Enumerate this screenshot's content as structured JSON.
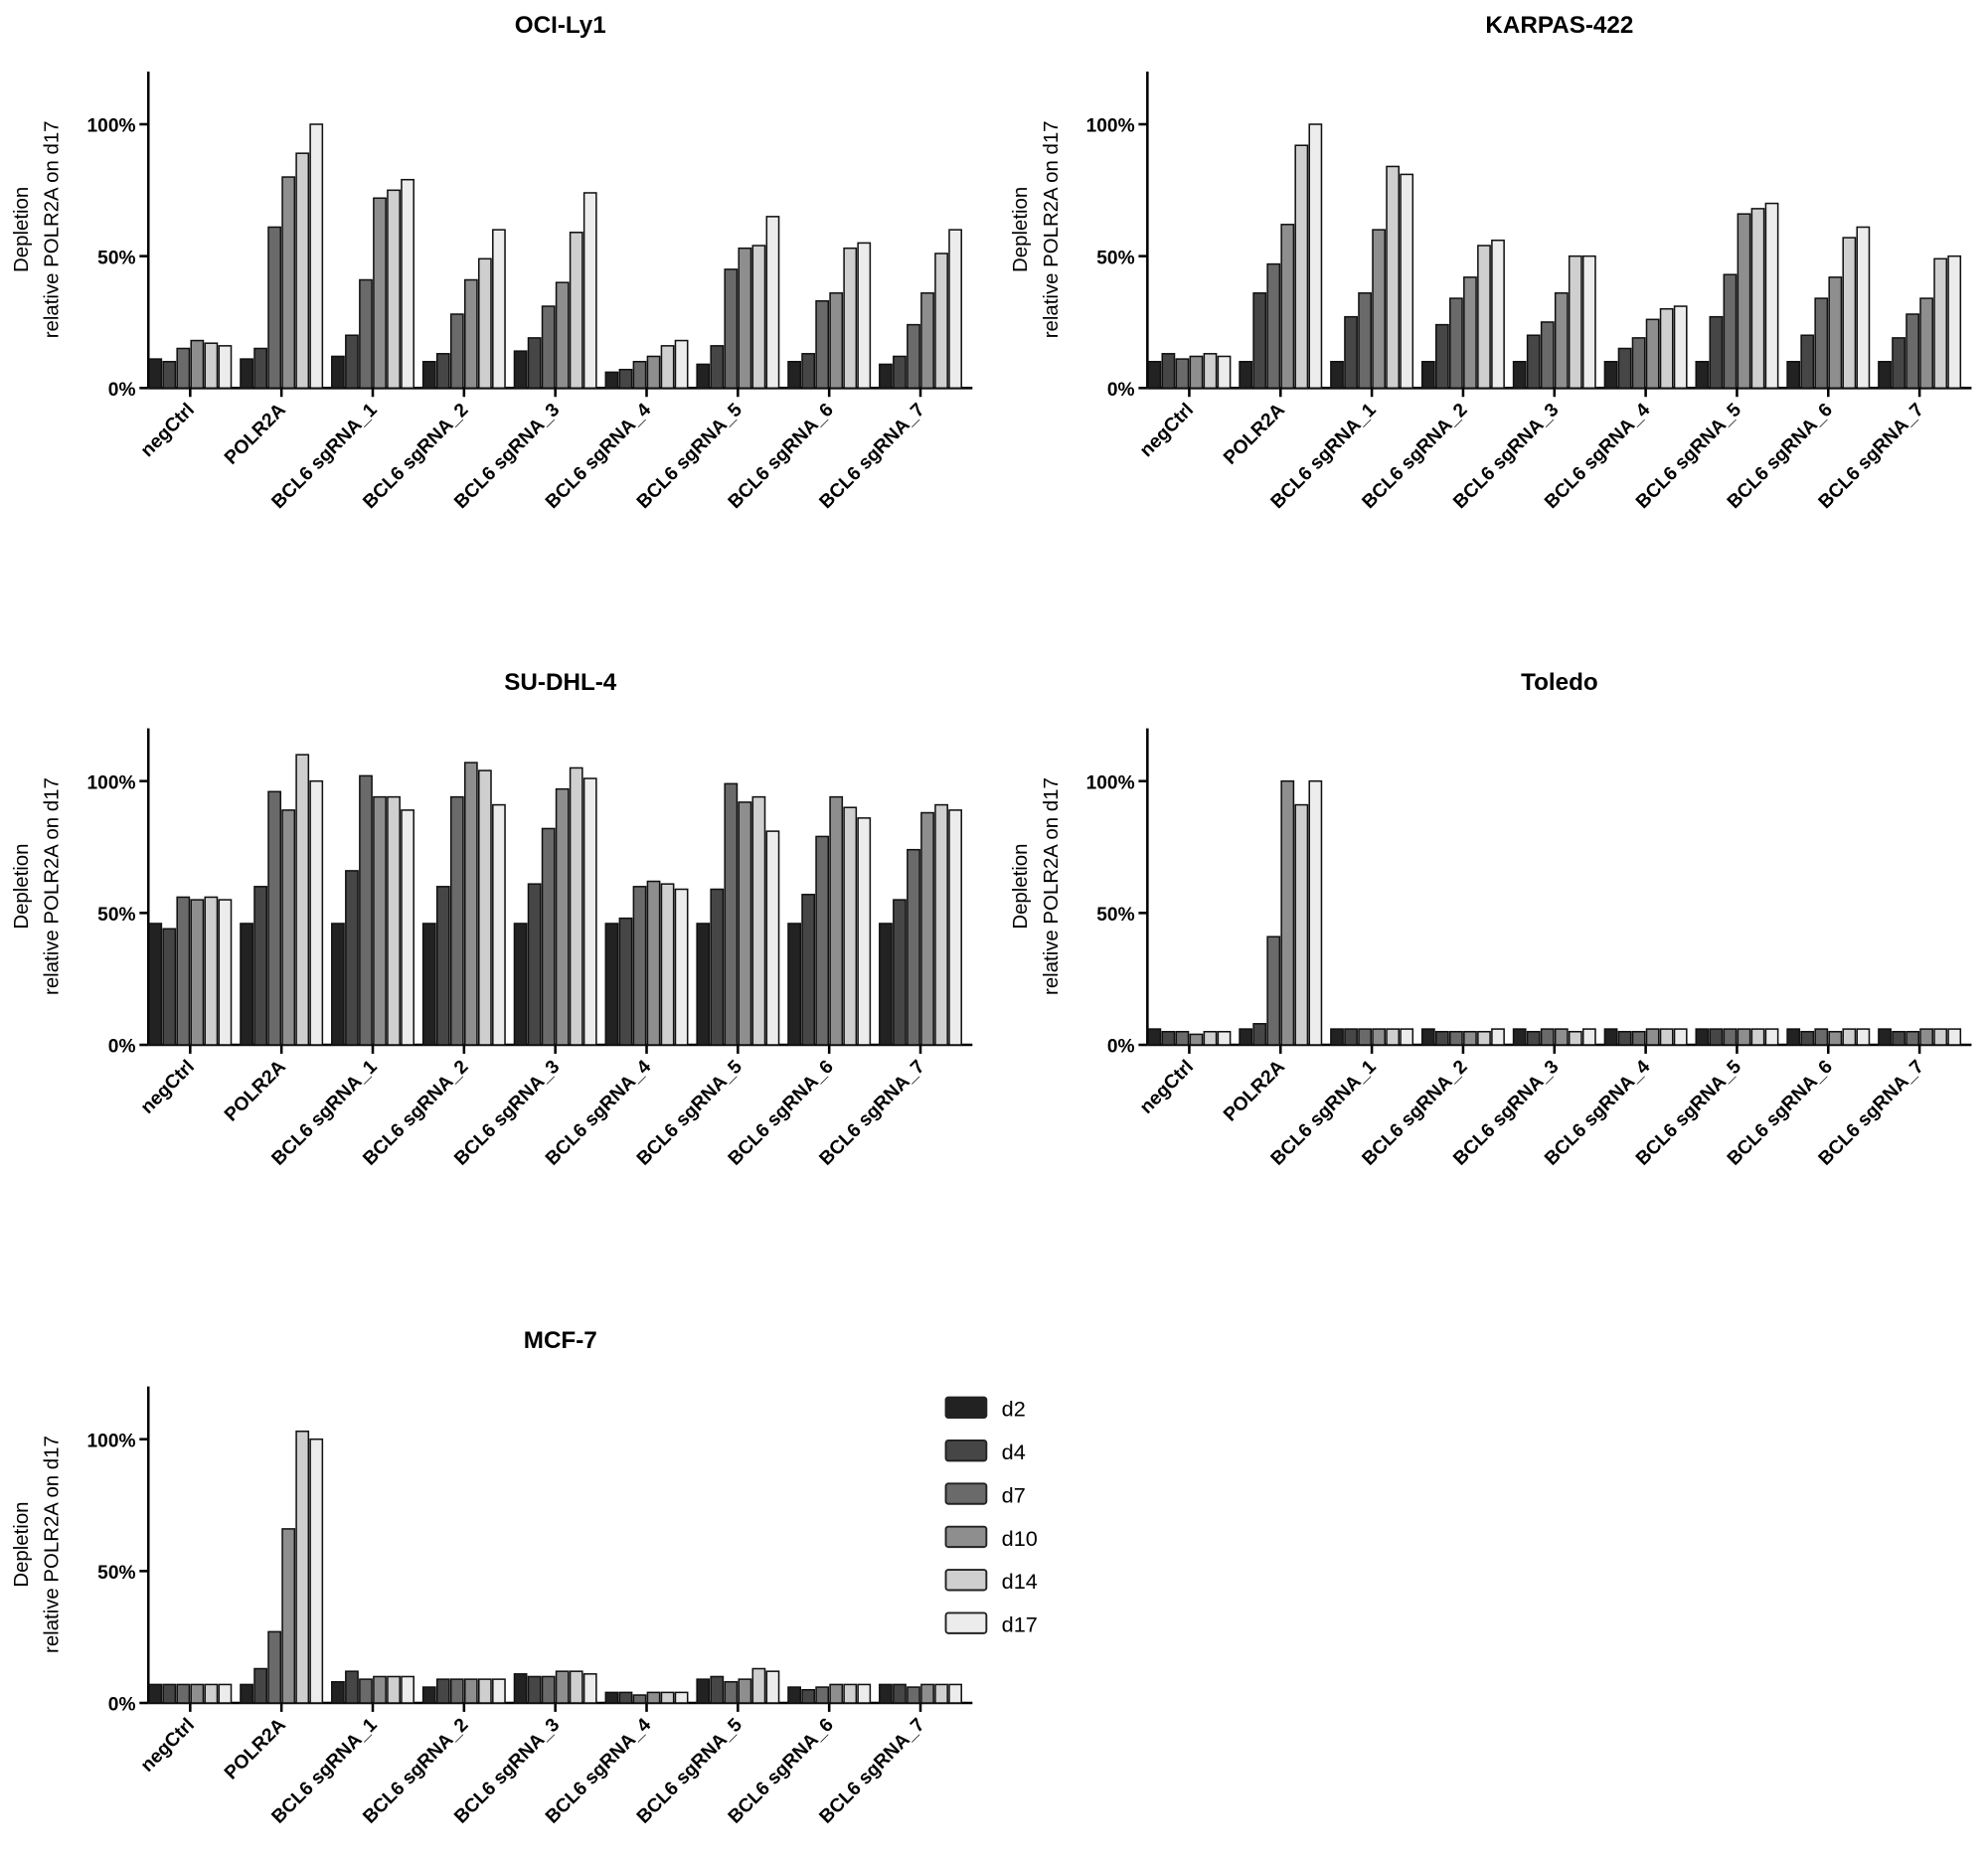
{
  "colors": {
    "d2": "#222222",
    "d4": "#464646",
    "d7": "#6a6a6a",
    "d10": "#8e8e8e",
    "d14": "#cfcfcf",
    "d17": "#ececec"
  },
  "legend": [
    "d2",
    "d4",
    "d7",
    "d10",
    "d14",
    "d17"
  ],
  "chart_data": [
    {
      "type": "bar",
      "title": "OCI-Ly1",
      "ylabel": [
        "Depletion",
        "relative POLR2A on d17"
      ],
      "ylim": [
        0,
        120
      ],
      "yticks": [
        "0%",
        "50%",
        "100%"
      ],
      "categories": [
        "negCtrl",
        "POLR2A",
        "BCL6 sgRNA_1",
        "BCL6 sgRNA_2",
        "BCL6 sgRNA_3",
        "BCL6 sgRNA_4",
        "BCL6 sgRNA_5",
        "BCL6 sgRNA_6",
        "BCL6 sgRNA_7"
      ],
      "series": [
        {
          "name": "d2",
          "values": [
            11,
            11,
            12,
            10,
            14,
            6,
            9,
            10,
            9
          ]
        },
        {
          "name": "d4",
          "values": [
            10,
            15,
            20,
            13,
            19,
            7,
            16,
            13,
            12
          ]
        },
        {
          "name": "d7",
          "values": [
            15,
            61,
            41,
            28,
            31,
            10,
            45,
            33,
            24
          ]
        },
        {
          "name": "d10",
          "values": [
            18,
            80,
            72,
            41,
            40,
            12,
            53,
            36,
            36
          ]
        },
        {
          "name": "d14",
          "values": [
            17,
            89,
            75,
            49,
            59,
            16,
            54,
            53,
            51
          ]
        },
        {
          "name": "d17",
          "values": [
            16,
            100,
            79,
            60,
            74,
            18,
            65,
            55,
            60
          ]
        }
      ]
    },
    {
      "type": "bar",
      "title": "KARPAS-422",
      "ylabel": [
        "Depletion",
        "relative POLR2A on d17"
      ],
      "ylim": [
        0,
        120
      ],
      "yticks": [
        "0%",
        "50%",
        "100%"
      ],
      "categories": [
        "negCtrl",
        "POLR2A",
        "BCL6 sgRNA_1",
        "BCL6 sgRNA_2",
        "BCL6 sgRNA_3",
        "BCL6 sgRNA_4",
        "BCL6 sgRNA_5",
        "BCL6 sgRNA_6",
        "BCL6 sgRNA_7"
      ],
      "series": [
        {
          "name": "d2",
          "values": [
            10,
            10,
            10,
            10,
            10,
            10,
            10,
            10,
            10
          ]
        },
        {
          "name": "d4",
          "values": [
            13,
            36,
            27,
            24,
            20,
            15,
            27,
            20,
            19
          ]
        },
        {
          "name": "d7",
          "values": [
            11,
            47,
            36,
            34,
            25,
            19,
            43,
            34,
            28
          ]
        },
        {
          "name": "d10",
          "values": [
            12,
            62,
            60,
            42,
            36,
            26,
            66,
            42,
            34
          ]
        },
        {
          "name": "d14",
          "values": [
            13,
            92,
            84,
            54,
            50,
            30,
            68,
            57,
            49
          ]
        },
        {
          "name": "d17",
          "values": [
            12,
            100,
            81,
            56,
            50,
            31,
            70,
            61,
            50
          ]
        }
      ]
    },
    {
      "type": "bar",
      "title": "SU-DHL-4",
      "ylabel": [
        "Depletion",
        "relative POLR2A on d17"
      ],
      "ylim": [
        0,
        120
      ],
      "yticks": [
        "0%",
        "50%",
        "100%"
      ],
      "categories": [
        "negCtrl",
        "POLR2A",
        "BCL6 sgRNA_1",
        "BCL6 sgRNA_2",
        "BCL6 sgRNA_3",
        "BCL6 sgRNA_4",
        "BCL6 sgRNA_5",
        "BCL6 sgRNA_6",
        "BCL6 sgRNA_7"
      ],
      "series": [
        {
          "name": "d2",
          "values": [
            46,
            46,
            46,
            46,
            46,
            46,
            46,
            46,
            46
          ]
        },
        {
          "name": "d4",
          "values": [
            44,
            60,
            66,
            60,
            61,
            48,
            59,
            57,
            55
          ]
        },
        {
          "name": "d7",
          "values": [
            56,
            96,
            102,
            94,
            82,
            60,
            99,
            79,
            74
          ]
        },
        {
          "name": "d10",
          "values": [
            55,
            89,
            94,
            107,
            97,
            62,
            92,
            94,
            88
          ]
        },
        {
          "name": "d14",
          "values": [
            56,
            110,
            94,
            104,
            105,
            61,
            94,
            90,
            91
          ]
        },
        {
          "name": "d17",
          "values": [
            55,
            100,
            89,
            91,
            101,
            59,
            81,
            86,
            89
          ]
        }
      ]
    },
    {
      "type": "bar",
      "title": "Toledo",
      "ylabel": [
        "Depletion",
        "relative POLR2A on d17"
      ],
      "ylim": [
        0,
        120
      ],
      "yticks": [
        "0%",
        "50%",
        "100%"
      ],
      "categories": [
        "negCtrl",
        "POLR2A",
        "BCL6 sgRNA_1",
        "BCL6 sgRNA_2",
        "BCL6 sgRNA_3",
        "BCL6 sgRNA_4",
        "BCL6 sgRNA_5",
        "BCL6 sgRNA_6",
        "BCL6 sgRNA_7"
      ],
      "series": [
        {
          "name": "d2",
          "values": [
            6,
            6,
            6,
            6,
            6,
            6,
            6,
            6,
            6
          ]
        },
        {
          "name": "d4",
          "values": [
            5,
            8,
            6,
            5,
            5,
            5,
            6,
            5,
            5
          ]
        },
        {
          "name": "d7",
          "values": [
            5,
            41,
            6,
            5,
            6,
            5,
            6,
            6,
            5
          ]
        },
        {
          "name": "d10",
          "values": [
            4,
            100,
            6,
            5,
            6,
            6,
            6,
            5,
            6
          ]
        },
        {
          "name": "d14",
          "values": [
            5,
            91,
            6,
            5,
            5,
            6,
            6,
            6,
            6
          ]
        },
        {
          "name": "d17",
          "values": [
            5,
            100,
            6,
            6,
            6,
            6,
            6,
            6,
            6
          ]
        }
      ]
    },
    {
      "type": "bar",
      "title": "MCF-7",
      "ylabel": [
        "Depletion",
        "relative POLR2A on d17"
      ],
      "ylim": [
        0,
        120
      ],
      "yticks": [
        "0%",
        "50%",
        "100%"
      ],
      "categories": [
        "negCtrl",
        "POLR2A",
        "BCL6 sgRNA_1",
        "BCL6 sgRNA_2",
        "BCL6 sgRNA_3",
        "BCL6 sgRNA_4",
        "BCL6 sgRNA_5",
        "BCL6 sgRNA_6",
        "BCL6 sgRNA_7"
      ],
      "series": [
        {
          "name": "d2",
          "values": [
            7,
            7,
            8,
            6,
            11,
            4,
            9,
            6,
            7
          ]
        },
        {
          "name": "d4",
          "values": [
            7,
            13,
            12,
            9,
            10,
            4,
            10,
            5,
            7
          ]
        },
        {
          "name": "d7",
          "values": [
            7,
            27,
            9,
            9,
            10,
            3,
            8,
            6,
            6
          ]
        },
        {
          "name": "d10",
          "values": [
            7,
            66,
            10,
            9,
            12,
            4,
            9,
            7,
            7
          ]
        },
        {
          "name": "d14",
          "values": [
            7,
            103,
            10,
            9,
            12,
            4,
            13,
            7,
            7
          ]
        },
        {
          "name": "d17",
          "values": [
            7,
            100,
            10,
            9,
            11,
            4,
            12,
            7,
            7
          ]
        }
      ],
      "legend_position": "right"
    }
  ]
}
